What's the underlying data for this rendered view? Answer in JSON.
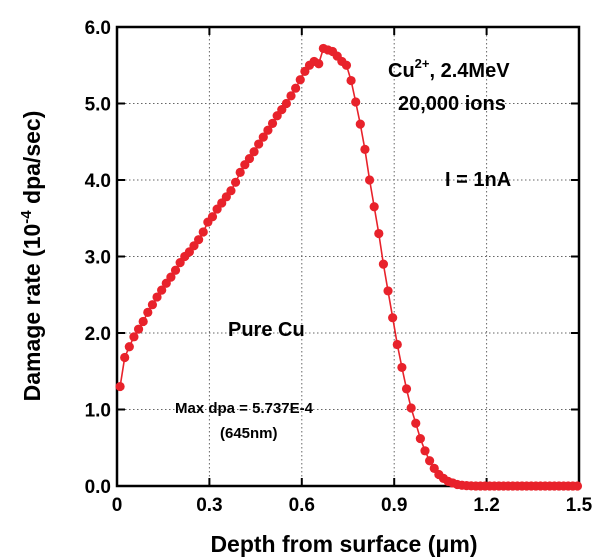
{
  "chart_data": {
    "type": "line",
    "xlabel": "Depth from surface (μm)",
    "ylabel_main": "Damage rate (10",
    "ylabel_exp": "-4",
    "ylabel_tail": " dpa/sec)",
    "xlim": [
      0,
      1.5
    ],
    "ylim": [
      0,
      6.0
    ],
    "x_ticks": [
      "0",
      "0.3",
      "0.6",
      "0.9",
      "1.2",
      "1.5"
    ],
    "y_ticks": [
      "0.0",
      "1.0",
      "2.0",
      "3.0",
      "4.0",
      "5.0",
      "6.0"
    ],
    "grid": "dotted",
    "colors": {
      "series": "#e8222b",
      "axis": "#000000",
      "grid": "#666666"
    },
    "annotations": {
      "ion_prefix": "Cu",
      "ion_charge": "2+",
      "ion_energy": ", 2.4MeV",
      "ions": "20,000 ions",
      "current": "I = 1nA",
      "material": "Pure Cu",
      "max_dpa": "Max dpa = 5.737E-4",
      "max_depth": "(645nm)"
    },
    "series": [
      {
        "x": [
          0.01,
          0.025,
          0.04,
          0.055,
          0.07,
          0.085,
          0.1,
          0.115,
          0.13,
          0.145,
          0.16,
          0.175,
          0.19,
          0.205,
          0.22,
          0.235,
          0.25,
          0.265,
          0.28,
          0.295,
          0.31,
          0.325,
          0.34,
          0.355,
          0.37,
          0.385,
          0.4,
          0.415,
          0.43,
          0.445,
          0.46,
          0.475,
          0.49,
          0.505,
          0.52,
          0.535,
          0.55,
          0.565,
          0.58,
          0.595,
          0.61,
          0.625,
          0.64,
          0.655,
          0.67,
          0.685,
          0.7,
          0.715,
          0.73,
          0.745,
          0.76,
          0.775,
          0.79,
          0.805,
          0.82,
          0.835,
          0.85,
          0.865,
          0.88,
          0.895,
          0.91,
          0.925,
          0.94,
          0.955,
          0.97,
          0.985,
          1.0,
          1.015,
          1.03,
          1.045,
          1.06,
          1.075,
          1.09,
          1.105,
          1.12,
          1.135,
          1.15,
          1.165,
          1.18,
          1.195,
          1.21,
          1.225,
          1.24,
          1.255,
          1.27,
          1.285,
          1.3,
          1.315,
          1.33,
          1.345,
          1.36,
          1.375,
          1.39,
          1.405,
          1.42,
          1.435,
          1.45,
          1.465,
          1.48,
          1.495
        ],
        "y": [
          1.3,
          1.68,
          1.82,
          1.95,
          2.05,
          2.15,
          2.27,
          2.37,
          2.47,
          2.56,
          2.65,
          2.73,
          2.82,
          2.92,
          3.0,
          3.06,
          3.14,
          3.22,
          3.32,
          3.45,
          3.52,
          3.62,
          3.7,
          3.78,
          3.86,
          3.97,
          4.1,
          4.2,
          4.28,
          4.37,
          4.47,
          4.56,
          4.65,
          4.74,
          4.84,
          4.92,
          5.0,
          5.1,
          5.2,
          5.31,
          5.42,
          5.5,
          5.55,
          5.52,
          5.72,
          5.7,
          5.68,
          5.62,
          5.55,
          5.5,
          5.3,
          5.02,
          4.73,
          4.4,
          4.0,
          3.65,
          3.3,
          2.9,
          2.55,
          2.2,
          1.85,
          1.55,
          1.27,
          1.02,
          0.82,
          0.62,
          0.46,
          0.33,
          0.23,
          0.15,
          0.1,
          0.06,
          0.04,
          0.02,
          0.01,
          0.005,
          0.002,
          0,
          0,
          0,
          0,
          0,
          0,
          0,
          0,
          0,
          0,
          0,
          0,
          0,
          0,
          0,
          0,
          0,
          0,
          0,
          0,
          0,
          0,
          0
        ]
      }
    ]
  }
}
